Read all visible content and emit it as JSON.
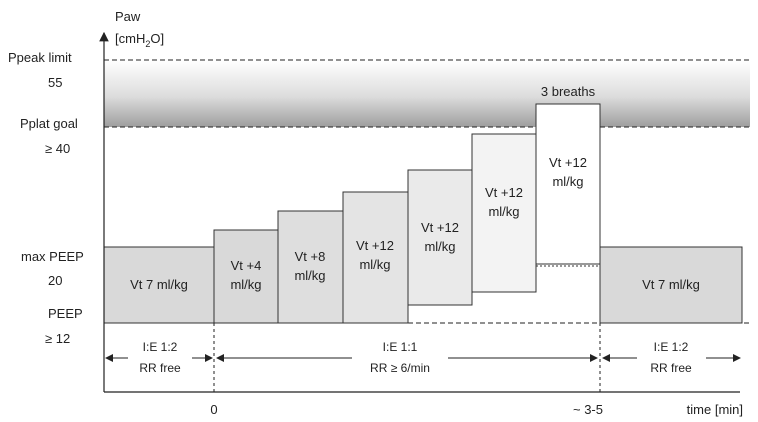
{
  "axis": {
    "y_title": "Paw",
    "y_unit_prefix": "[cmH",
    "y_unit_sub": "2",
    "y_unit_suffix": "O]",
    "x_unit": "time [min]",
    "x_ticks": [
      "0",
      "~ 3-5"
    ]
  },
  "levels": [
    {
      "name": "Ppeak limit",
      "value": "55"
    },
    {
      "name": "Pplat goal",
      "value": "≥ 40"
    },
    {
      "name": "max PEEP",
      "value": "20"
    },
    {
      "name": "PEEP",
      "value": "≥ 12"
    }
  ],
  "blocks": {
    "baseline_left": "Vt 7 ml/kg",
    "steps": [
      {
        "line1": "Vt +4",
        "line2": "ml/kg"
      },
      {
        "line1": "Vt +8",
        "line2": "ml/kg"
      },
      {
        "line1": "Vt +12",
        "line2": "ml/kg"
      },
      {
        "line1": "Vt +12",
        "line2": "ml/kg"
      },
      {
        "line1": "Vt +12",
        "line2": "ml/kg"
      },
      {
        "line1": "Vt +12",
        "line2": "ml/kg"
      }
    ],
    "last_note": "3 breaths",
    "baseline_right": "Vt 7 ml/kg"
  },
  "phases": [
    {
      "line1": "I:E 1:2",
      "line2": "RR free"
    },
    {
      "line1": "I:E 1:1",
      "line2": "RR ≥ 6/min"
    },
    {
      "line1": "I:E 1:2",
      "line2": "RR free"
    }
  ],
  "colors": {
    "baseline_fill": "#d9d9d9",
    "band_top": "#ffffff",
    "band_bottom": "#a6a6a6"
  }
}
